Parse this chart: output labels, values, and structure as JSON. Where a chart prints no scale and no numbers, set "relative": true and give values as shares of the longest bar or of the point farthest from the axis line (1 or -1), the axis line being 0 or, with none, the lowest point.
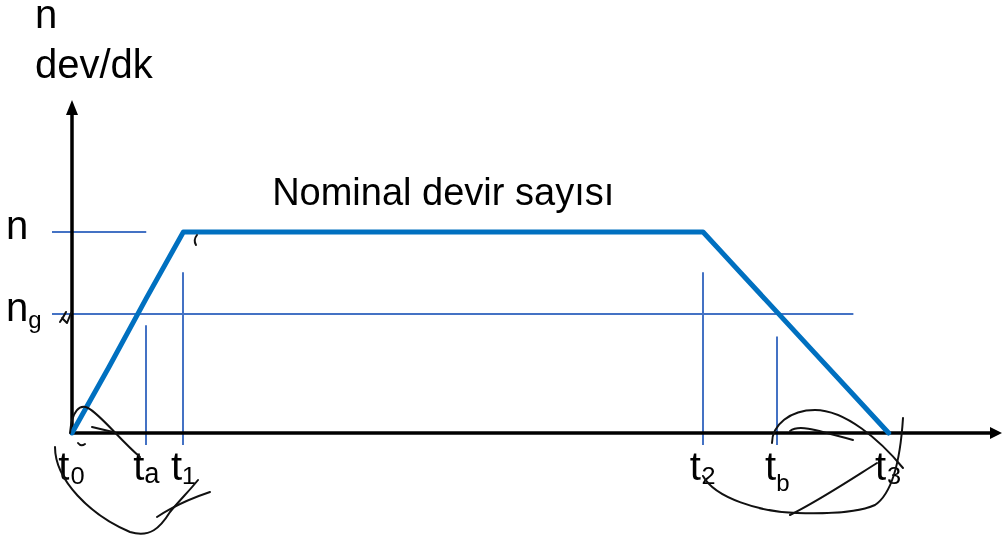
{
  "chart_data": {
    "type": "line",
    "ylabel": "n\ndev/dk",
    "relative": true,
    "categories": [
      "t₀",
      null,
      "tₐ",
      "t₁",
      null,
      null,
      null,
      null,
      null,
      null,
      null,
      null,
      null,
      null,
      null,
      null,
      null,
      "t₂",
      null,
      "t$_{b}$",
      null,
      null,
      "t₃",
      null,
      null,
      null
    ],
    "series": [
      {
        "color": "#0070c0",
        "values": [
          0,
          0.33,
          0.67,
          1,
          1,
          1,
          1,
          1,
          1,
          1,
          1,
          1,
          1,
          1,
          1,
          1,
          1,
          1,
          0.8,
          0.6,
          0.4,
          0.2,
          0,
          null,
          null,
          null
        ]
      }
    ],
    "ref_lines": [
      {
        "axis": "y",
        "value": 1,
        "label": "n",
        "color": "#4472c4"
      },
      {
        "axis": "y",
        "value": 0.59,
        "label": "n$_{g}$",
        "color": "#4472c4"
      },
      {
        "axis": "x",
        "value": "tₐ",
        "color": "#4472c4"
      },
      {
        "axis": "x",
        "value": "t₁",
        "color": "#4472c4"
      },
      {
        "axis": "x",
        "value": "t₂",
        "color": "#4472c4"
      },
      {
        "axis": "x",
        "value": "t$_{b}$",
        "color": "#4472c4"
      }
    ],
    "annotations": [
      {
        "text": "Nominal devir sayısı",
        "y": 1
      }
    ],
    "marker": "none",
    "line_style": "solid"
  }
}
